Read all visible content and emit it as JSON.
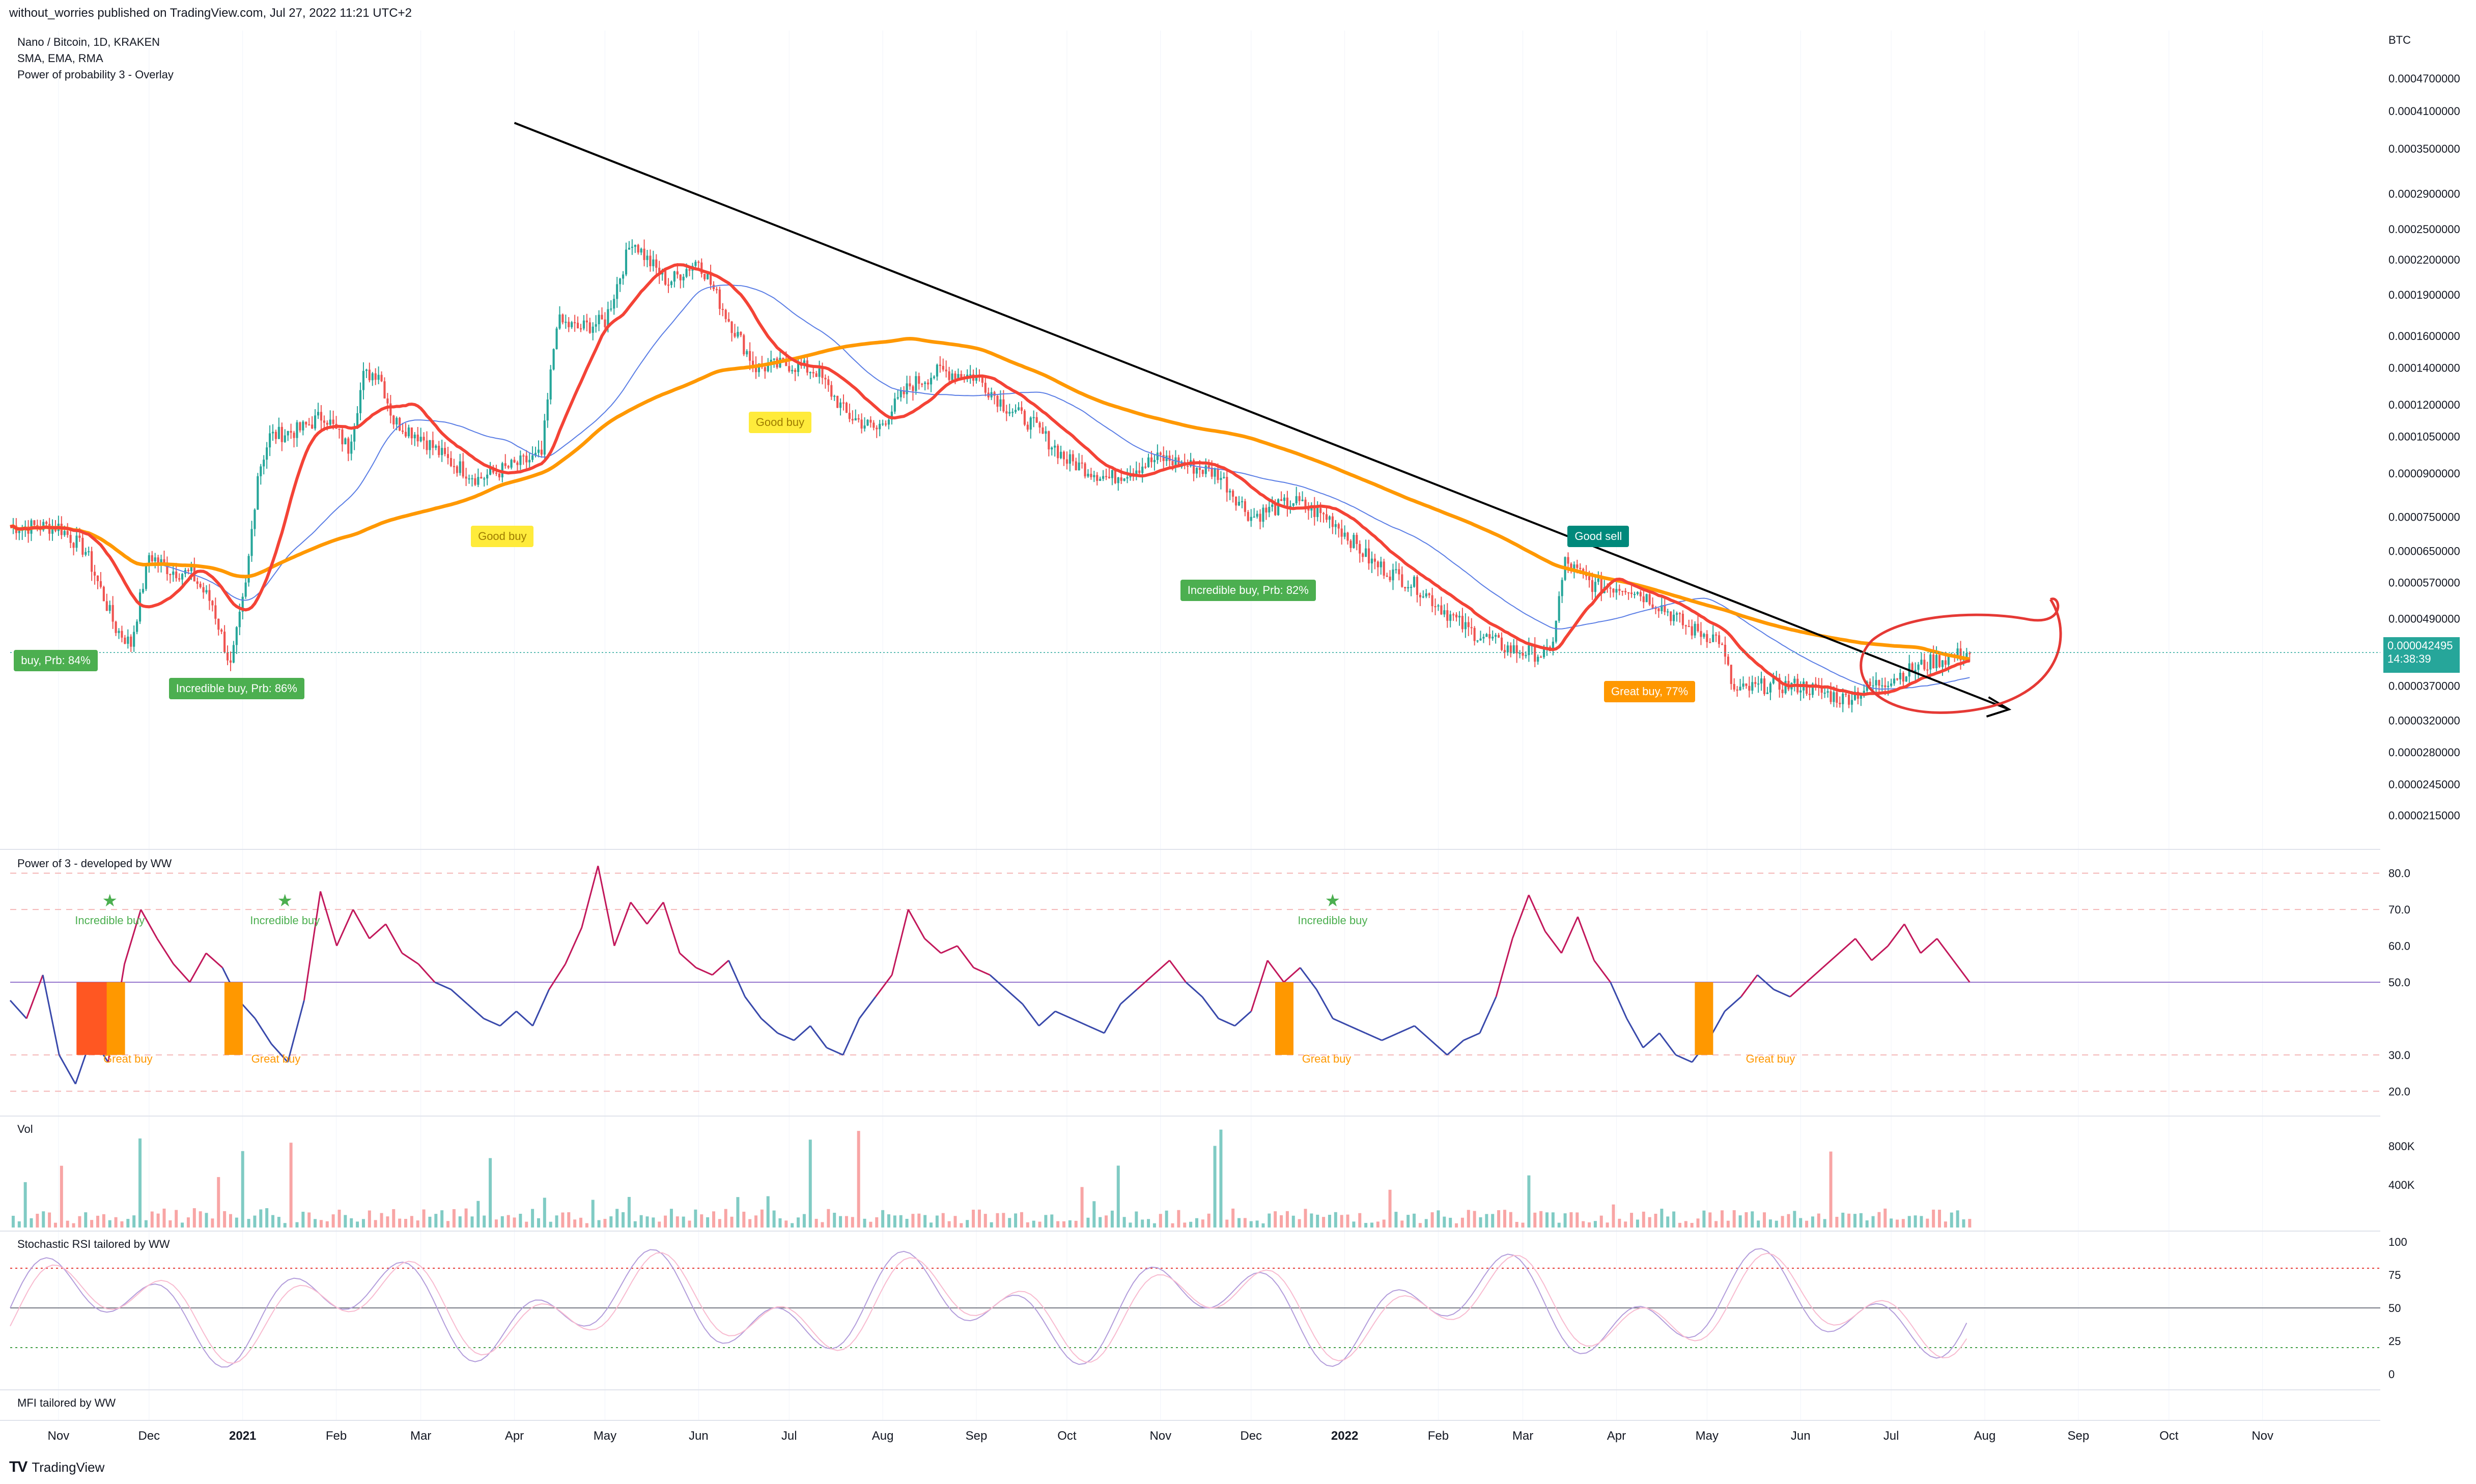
{
  "header": {
    "published_text": "without_worries published on TradingView.com, Jul 27, 2022 11:21 UTC+2"
  },
  "main_pane": {
    "legend": [
      "Nano / Bitcoin, 1D, KRAKEN",
      "SMA, EMA, RMA",
      "Power of probability 3 - Overlay"
    ],
    "currency": "BTC",
    "last_price": "0.000042495",
    "countdown": "14:38:39",
    "colors": {
      "up": "#26a69a",
      "down": "#ef5350",
      "ema_fast": "#f44336",
      "ema_green": "#43a047",
      "sma_slow": "#ff9800",
      "rma": "#5b7ee5",
      "trendline": "#000000",
      "annotation": "#e53935"
    }
  },
  "signals": [
    {
      "text": "buy, Prb: 84%",
      "color": "#4caf50",
      "text_color": "#ffffff"
    },
    {
      "text": "Incredible buy, Prb: 86%",
      "color": "#4caf50",
      "text_color": "#ffffff"
    },
    {
      "text": "Good buy",
      "color": "#ffeb3b",
      "text_color": "#9e7c00"
    },
    {
      "text": "Good buy",
      "color": "#ffeb3b",
      "text_color": "#9e7c00"
    },
    {
      "text": "Incredible buy, Prb: 82%",
      "color": "#4caf50",
      "text_color": "#ffffff"
    },
    {
      "text": "Good sell",
      "color": "#00897b",
      "text_color": "#ffffff"
    },
    {
      "text": "Great buy,  77%",
      "color": "#ff9800",
      "text_color": "#ffffff"
    }
  ],
  "power_pane": {
    "title": "Power of 3 - developed by WW",
    "labels": [
      "Incredible buy",
      "Incredible buy",
      "Incredible buy",
      "Great buy",
      "Great buy",
      "Great buy",
      "Great buy"
    ],
    "star": "★"
  },
  "volume_pane": {
    "title": "Vol"
  },
  "stoch_pane": {
    "title": "Stochastic RSI tailored by WW"
  },
  "mfi_pane": {
    "title": "MFI tailored by WW"
  },
  "footer": {
    "brand": "TradingView",
    "brand_mark": "TV"
  },
  "chart_data": [
    {
      "type": "candlestick",
      "title": "Nano / Bitcoin, 1D, KRAKEN",
      "y_scale": "log",
      "y_ticks": [
        "0.0004700000",
        "0.0004100000",
        "0.0003500000",
        "0.0002900000",
        "0.0002500000",
        "0.0002200000",
        "0.0001900000",
        "0.0001600000",
        "0.0001400000",
        "0.0001200000",
        "0.0001050000",
        "0.0000900000",
        "0.0000750000",
        "0.0000650000",
        "0.0000570000",
        "0.0000490000",
        "0.0000370000",
        "0.0000320000",
        "0.0000280000",
        "0.0000245000",
        "0.0000215000"
      ],
      "x_ticks": [
        "Nov",
        "Dec",
        "2021",
        "Feb",
        "Mar",
        "Apr",
        "May",
        "Jun",
        "Jul",
        "Aug",
        "Sep",
        "Oct",
        "Nov",
        "Dec",
        "2022",
        "Feb",
        "Mar",
        "Apr",
        "May",
        "Jun",
        "Jul",
        "Aug",
        "Sep",
        "Oct",
        "Nov"
      ],
      "price_path": [
        [
          "2020-11-01",
          7.2e-05
        ],
        [
          "2020-11-10",
          6.5e-05
        ],
        [
          "2020-11-20",
          4.7e-05
        ],
        [
          "2020-11-25",
          4.4e-05
        ],
        [
          "2020-12-01",
          6.4e-05
        ],
        [
          "2020-12-08",
          6e-05
        ],
        [
          "2020-12-15",
          5.9e-05
        ],
        [
          "2020-12-22",
          5.2e-05
        ],
        [
          "2020-12-28",
          4e-05
        ],
        [
          "2021-01-02",
          5.6e-05
        ],
        [
          "2021-01-06",
          9e-05
        ],
        [
          "2021-01-10",
          0.000105
        ],
        [
          "2021-01-20",
          0.000108
        ],
        [
          "2021-01-28",
          0.000115
        ],
        [
          "2021-02-05",
          0.0001
        ],
        [
          "2021-02-10",
          0.000135
        ],
        [
          "2021-02-15",
          0.000138
        ],
        [
          "2021-02-20",
          0.000112
        ],
        [
          "2021-03-01",
          0.000105
        ],
        [
          "2021-03-10",
          9.5e-05
        ],
        [
          "2021-03-20",
          8.8e-05
        ],
        [
          "2021-04-01",
          9.3e-05
        ],
        [
          "2021-04-10",
          9.7e-05
        ],
        [
          "2021-04-15",
          0.00017
        ],
        [
          "2021-04-22",
          0.000165
        ],
        [
          "2021-05-01",
          0.00017
        ],
        [
          "2021-05-10",
          0.00024
        ],
        [
          "2021-05-15",
          0.00022
        ],
        [
          "2021-05-22",
          0.0002
        ],
        [
          "2021-06-01",
          0.00022
        ],
        [
          "2021-06-10",
          0.000175
        ],
        [
          "2021-06-20",
          0.00014
        ],
        [
          "2021-07-01",
          0.000142
        ],
        [
          "2021-07-10",
          0.000138
        ],
        [
          "2021-07-20",
          0.000115
        ],
        [
          "2021-07-30",
          0.000108
        ],
        [
          "2021-08-10",
          0.00013
        ],
        [
          "2021-08-20",
          0.000138
        ],
        [
          "2021-09-01",
          0.000135
        ],
        [
          "2021-09-10",
          0.00012
        ],
        [
          "2021-09-20",
          0.00011
        ],
        [
          "2021-10-01",
          9.5e-05
        ],
        [
          "2021-10-15",
          8.8e-05
        ],
        [
          "2021-11-01",
          9.6e-05
        ],
        [
          "2021-11-10",
          9.3e-05
        ],
        [
          "2021-11-20",
          9e-05
        ],
        [
          "2021-12-01",
          7.5e-05
        ],
        [
          "2021-12-15",
          8e-05
        ],
        [
          "2021-12-28",
          7.4e-05
        ],
        [
          "2022-01-10",
          6.2e-05
        ],
        [
          "2022-01-25",
          5.6e-05
        ],
        [
          "2022-02-10",
          4.7e-05
        ],
        [
          "2022-02-25",
          4.3e-05
        ],
        [
          "2022-03-10",
          4.2e-05
        ],
        [
          "2022-03-15",
          6.2e-05
        ],
        [
          "2022-03-25",
          5.6e-05
        ],
        [
          "2022-04-05",
          5.6e-05
        ],
        [
          "2022-04-15",
          5.2e-05
        ],
        [
          "2022-04-25",
          4.7e-05
        ],
        [
          "2022-05-05",
          4.5e-05
        ],
        [
          "2022-05-10",
          3.6e-05
        ],
        [
          "2022-05-20",
          3.7e-05
        ],
        [
          "2022-06-01",
          3.7e-05
        ],
        [
          "2022-06-15",
          3.5e-05
        ],
        [
          "2022-06-25",
          3.7e-05
        ],
        [
          "2022-07-05",
          3.9e-05
        ],
        [
          "2022-07-15",
          4.1e-05
        ],
        [
          "2022-07-27",
          4.25e-05
        ]
      ]
    },
    {
      "type": "line",
      "title": "Power of 3 - developed by WW",
      "y_ticks": [
        "80.0",
        "70.0",
        "60.0",
        "50.0",
        "30.0",
        "20.0"
      ],
      "ylim": [
        15,
        85
      ],
      "reference_line": 50,
      "series": [
        {
          "values": [
            45,
            40,
            52,
            30,
            22,
            35,
            28,
            55,
            70,
            62,
            55,
            50,
            58,
            54,
            45,
            40,
            33,
            28,
            45,
            75,
            60,
            70,
            62,
            66,
            58,
            55,
            50,
            48,
            44,
            40,
            38,
            42,
            38,
            48,
            55,
            65,
            82,
            60,
            72,
            66,
            72,
            58,
            54,
            52,
            56,
            46,
            40,
            36,
            34,
            38,
            32,
            30,
            40,
            46,
            52,
            70,
            62,
            58,
            60,
            54,
            52,
            48,
            44,
            38,
            42,
            40,
            38,
            36,
            44,
            48,
            52,
            56,
            50,
            46,
            40,
            38,
            42,
            56,
            50,
            54,
            48,
            40,
            38,
            36,
            34,
            36,
            38,
            34,
            30,
            34,
            36,
            46,
            62,
            74,
            64,
            58,
            68,
            56,
            50,
            40,
            32,
            36,
            30,
            28,
            34,
            42,
            46,
            52,
            48,
            46,
            50,
            54,
            58,
            62,
            56,
            60,
            66,
            58,
            62,
            56,
            50
          ]
        }
      ]
    },
    {
      "type": "bar",
      "title": "Vol",
      "y_ticks": [
        "800K",
        "400K"
      ]
    },
    {
      "type": "line",
      "title": "Stochastic RSI tailored by WW",
      "y_ticks": [
        "100",
        "75",
        "50",
        "25",
        "0"
      ],
      "ylim": [
        0,
        100
      ],
      "reference_lines": [
        80,
        50,
        20
      ]
    },
    {
      "type": "line",
      "title": "MFI tailored by WW"
    }
  ]
}
